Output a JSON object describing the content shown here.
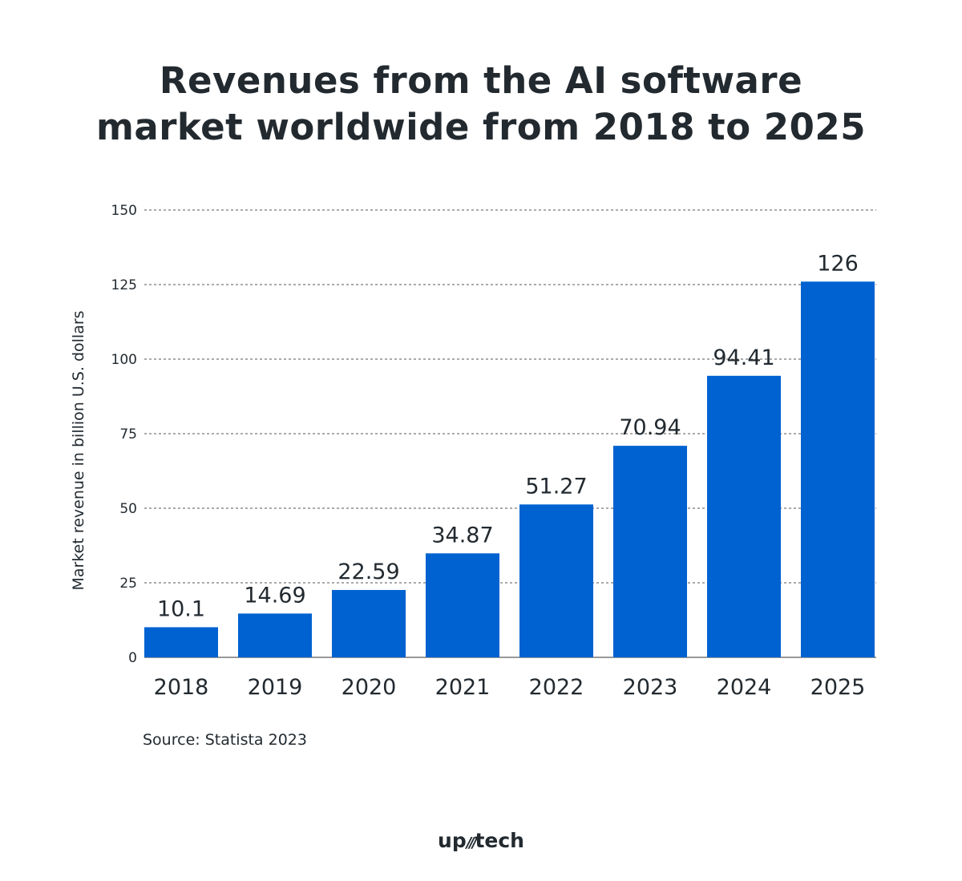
{
  "chart_data": {
    "type": "bar",
    "title": "Revenues from the AI software market worldwide from 2018 to 2025",
    "title_lines": [
      "Revenues from the AI software",
      "market worldwide from 2018 to 2025"
    ],
    "categories": [
      "2018",
      "2019",
      "2020",
      "2021",
      "2022",
      "2023",
      "2024",
      "2025"
    ],
    "values": [
      10.1,
      14.69,
      22.59,
      34.87,
      51.27,
      70.94,
      94.41,
      126
    ],
    "data_labels": [
      "10.1",
      "14.69",
      "22.59",
      "34.87",
      "51.27",
      "70.94",
      "94.41",
      "126"
    ],
    "xlabel": "",
    "ylabel": "Market revenue in billion U.S. dollars",
    "ylim": [
      0,
      150
    ],
    "yticks": [
      0,
      25,
      50,
      75,
      100,
      125,
      150
    ],
    "grid": "horizontal dashed",
    "bar_color": "#0062d1"
  },
  "source": "Source: Statista 2023",
  "logo": {
    "left": "up",
    "right": "tech"
  }
}
